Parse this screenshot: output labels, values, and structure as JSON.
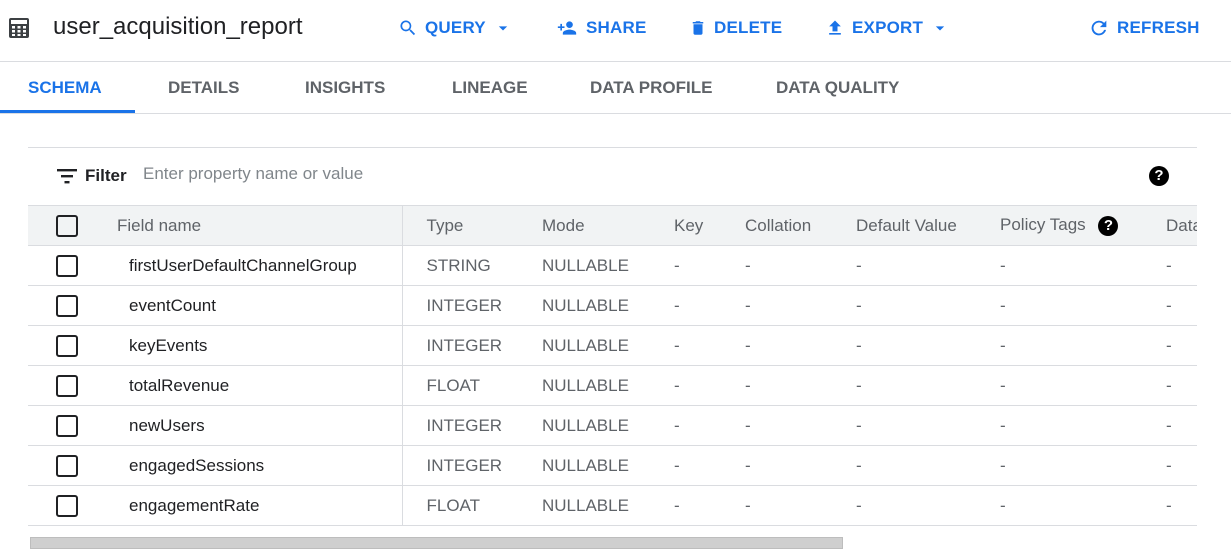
{
  "header": {
    "title": "user_acquisition_report",
    "title_icon": "table-icon",
    "actions": {
      "query": "QUERY",
      "share": "SHARE",
      "delete": "DELETE",
      "export": "EXPORT",
      "refresh": "REFRESH"
    }
  },
  "tabs": [
    {
      "label": "SCHEMA",
      "active": true
    },
    {
      "label": "DETAILS"
    },
    {
      "label": "INSIGHTS"
    },
    {
      "label": "LINEAGE"
    },
    {
      "label": "DATA PROFILE"
    },
    {
      "label": "DATA QUALITY"
    }
  ],
  "filter": {
    "label": "Filter",
    "placeholder": "Enter property name or value"
  },
  "table": {
    "columns": [
      "Field name",
      "Type",
      "Mode",
      "Key",
      "Collation",
      "Default Value",
      "Policy Tags",
      "Data"
    ],
    "rows": [
      [
        "firstUserDefaultChannelGroup",
        "STRING",
        "NULLABLE",
        "-",
        "-",
        "-",
        "-",
        "-"
      ],
      [
        "eventCount",
        "INTEGER",
        "NULLABLE",
        "-",
        "-",
        "-",
        "-",
        "-"
      ],
      [
        "keyEvents",
        "INTEGER",
        "NULLABLE",
        "-",
        "-",
        "-",
        "-",
        "-"
      ],
      [
        "totalRevenue",
        "FLOAT",
        "NULLABLE",
        "-",
        "-",
        "-",
        "-",
        "-"
      ],
      [
        "newUsers",
        "INTEGER",
        "NULLABLE",
        "-",
        "-",
        "-",
        "-",
        "-"
      ],
      [
        "engagedSessions",
        "INTEGER",
        "NULLABLE",
        "-",
        "-",
        "-",
        "-",
        "-"
      ],
      [
        "engagementRate",
        "FLOAT",
        "NULLABLE",
        "-",
        "-",
        "-",
        "-",
        "-"
      ]
    ]
  },
  "colors": {
    "accent": "#1a73e8",
    "text": "#202124",
    "muted": "#5f6368"
  }
}
